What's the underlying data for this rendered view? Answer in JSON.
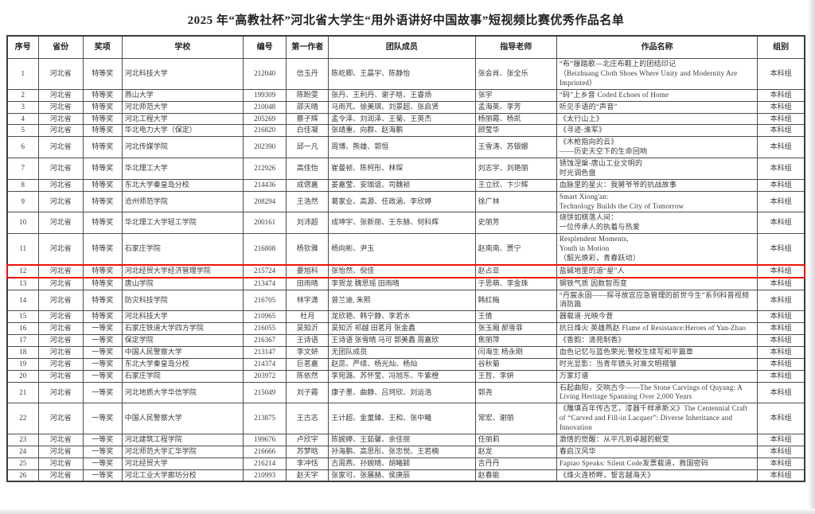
{
  "page": {
    "title": "2025 年“高教社杯”河北省大学生“用外语讲好中国故事”短视频比赛优秀作品名单"
  },
  "table": {
    "columns": [
      "序号",
      "省份",
      "奖项",
      "学校",
      "编号",
      "第一作者",
      "团队成员",
      "指导老师",
      "作品名称",
      "组别"
    ],
    "highlight_row_no": "12",
    "highlight_color": "#ec130c",
    "rows": [
      {
        "no": "1",
        "province": "河北省",
        "award": "特等奖",
        "school": "河北科技大学",
        "code": "212040",
        "author": "信玉丹",
        "team": "陈屹卿、王晨宇、陈静怡",
        "advisors": "张会肖、张全乐",
        "work": "“布”履踏歌—北庄布鞋上的团结印记\n（Beizhuang Cloth Shoes Where Unity and Modernity Are Imprinted）",
        "group": "本科组"
      },
      {
        "no": "2",
        "province": "河北省",
        "award": "特等奖",
        "school": "燕山大学",
        "code": "199309",
        "author": "陈盼雯",
        "team": "张丹、王利丹、谢子晗、王睿炀",
        "advisors": "张宇",
        "work": "“码”上乡音 Coded Echoes of Home",
        "group": "本科组"
      },
      {
        "no": "3",
        "province": "河北省",
        "award": "特等奖",
        "school": "河北师范大学",
        "code": "210048",
        "author": "邵天晴",
        "team": "马雨芃、徐美琪、刘景超、张启贤",
        "advisors": "孟海英、李芳",
        "work": "听见手语的“声音”",
        "group": "本科组"
      },
      {
        "no": "4",
        "province": "河北省",
        "award": "特等奖",
        "school": "河北工程大学",
        "code": "205269",
        "author": "蔡子辉",
        "team": "孟令泽、刘润泽、王菊、王英杰",
        "advisors": "杨丽霞、杨凯",
        "work": "《太行山上》",
        "group": "本科组"
      },
      {
        "no": "5",
        "province": "河北省",
        "award": "特等奖",
        "school": "华北电力大学（保定）",
        "code": "216820",
        "author": "白佳凝",
        "team": "张靖重、向群、赵海鹏",
        "advisors": "顾莹华",
        "work": "《寻迹·淮军》",
        "group": "本科组"
      },
      {
        "no": "6",
        "province": "河北省",
        "award": "特等奖",
        "school": "河北传媒学院",
        "code": "202390",
        "author": "邱一凡",
        "team": "周博、熊雄、郭恒",
        "advisors": "王雪涛、苏银娜",
        "work": "《木枪指向的云》\n——历史天空下的生命回响",
        "group": "本科组"
      },
      {
        "no": "7",
        "province": "河北省",
        "award": "特等奖",
        "school": "华北理工大学",
        "code": "212926",
        "author": "高佳怡",
        "team": "崔曼祯、陈柯彤、林琛",
        "advisors": "刘志宇、刘艳丽",
        "work": "锈蚀涅槃-唐山工业文明的\n时光调色盘",
        "group": "本科组"
      },
      {
        "no": "8",
        "province": "河北省",
        "award": "特等奖",
        "school": "东北大学秦皇岛分校",
        "code": "214436",
        "author": "成偲嘉",
        "team": "姜嘉莹、安珈谊、司魏祯",
        "advisors": "王立欣、卞少辉",
        "work": "血脉里的星火：我舅爷爷的抗战故事",
        "group": "本科组"
      },
      {
        "no": "9",
        "province": "河北省",
        "award": "特等奖",
        "school": "沧州师范学院",
        "code": "208294",
        "author": "王浩然",
        "team": "葛家业、高源、任政涵、李欣婷",
        "advisors": "徐广林",
        "work": "Smart Xiong'an:\nTechnology Builds the City of Tomorrow",
        "group": "本科组"
      },
      {
        "no": "10",
        "province": "河北省",
        "award": "特等奖",
        "school": "华北理工大学轻工学院",
        "code": "200161",
        "author": "刘沛超",
        "team": "成坤宇、张新丽、王东赫、何科辉",
        "advisors": "史丽芳",
        "work": "烧饼如棋落人间：\n一位传承人的执着与热爱",
        "group": "本科组"
      },
      {
        "no": "11",
        "province": "河北省",
        "award": "特等奖",
        "school": "石家庄学院",
        "code": "216808",
        "author": "杨钦雅",
        "team": "杨向彬、尹玉",
        "advisors": "赵南南、贾宁",
        "work": "Resplendent Moments,\nYouth in Motion\n（韶光焕彩，青春跃动）",
        "group": "本科组"
      },
      {
        "no": "12",
        "province": "河北省",
        "award": "特等奖",
        "school": "河北经贸大学经济管理学院",
        "code": "215724",
        "author": "要旭科",
        "team": "张怡然、倪佳",
        "advisors": "赵占亚",
        "work": "盐碱地里的追“星”人",
        "group": "本科组"
      },
      {
        "no": "13",
        "province": "河北省",
        "award": "特等奖",
        "school": "唐山学院",
        "code": "213474",
        "author": "田雨晴",
        "team": "李贺龙 魏思瑶 田雨晴",
        "advisors": "于思萌、李金珠",
        "work": "钢铁气质 因数智而变",
        "group": "本科组"
      },
      {
        "no": "14",
        "province": "河北省",
        "award": "特等奖",
        "school": "防灾科技学院",
        "code": "216705",
        "author": "林宇潇",
        "team": "曾兰迪, 朱熙",
        "advisors": "韩红梅",
        "work": "“丹宸永固——探寻故宫应急管理的前世今生”系列科普视频消防篇",
        "group": "本科组"
      },
      {
        "no": "15",
        "province": "河北省",
        "award": "特等奖",
        "school": "河北科技大学",
        "code": "210965",
        "author": "杜月",
        "team": "龙欣艳、韩宁静、李若水",
        "advisors": "王倩",
        "work": "器载道·光映今昔",
        "group": "本科组"
      },
      {
        "no": "16",
        "province": "河北省",
        "award": "一等奖",
        "school": "石家庄铁道大学四方学院",
        "code": "216055",
        "author": "吴知沂",
        "team": "吴知沂 祁越 田茗月 张金鑫",
        "advisors": "张玉厢 郝雪菲",
        "work": "抗日烽火 英雄燕赵 Flame of Resistance:Heroes of Yan-Zhao",
        "group": "本科组"
      },
      {
        "no": "17",
        "province": "河北省",
        "award": "一等奖",
        "school": "保定学院",
        "code": "216367",
        "author": "王诗语",
        "team": "王诗语 张雪晴 马可 郭美鑫 周嘉欣",
        "advisors": "焦丽萍",
        "work": "《香韵：清苑制香》",
        "group": "本科组"
      },
      {
        "no": "18",
        "province": "河北省",
        "award": "一等奖",
        "school": "中国人民警察大学",
        "code": "213147",
        "author": "李文妍",
        "team": "无团队成员",
        "advisors": "闫海生 杨永刚",
        "work": "血色记忆与蓝色荣光:警校生续写和平篇章",
        "group": "本科组"
      },
      {
        "no": "19",
        "province": "河北省",
        "award": "一等奖",
        "school": "东北大学秦皇岛分校",
        "code": "214374",
        "author": "巨茗嘉",
        "team": "赵蕊、严续、杨光灿、杨灿",
        "advisors": "谷秋菊",
        "work": "时光显影：当青年镜头对准文明褶皱",
        "group": "本科组"
      },
      {
        "no": "20",
        "province": "河北省",
        "award": "一等奖",
        "school": "石家庄学院",
        "code": "203972",
        "author": "陈依然",
        "team": "李宛潞、苏怀莹、冯旭东、牛紫橙",
        "advisors": "王哲、李妍",
        "work": "万家灯谱",
        "group": "本科组"
      },
      {
        "no": "21",
        "province": "河北省",
        "award": "一等奖",
        "school": "河北地质大学华信学院",
        "code": "215049",
        "author": "刘子霞",
        "team": "康子墨、曲静、吕珂欣、刘运浩",
        "advisors": "郭尧",
        "work": "石起曲阳，交响古今——The Stone Carvings of Quyang: A Living Heritage Spanning Over 2,000 Years",
        "group": "本科组"
      },
      {
        "no": "22",
        "province": "河北省",
        "award": "一等奖",
        "school": "中国人民警察大学",
        "code": "213875",
        "author": "王古志",
        "team": "王计超、金童臻、王和、张中曦",
        "advisors": "常宏、谢丽",
        "work": "《雕填百年传古艺，漆器千样承新义》The Centennial Craft of “Carved and Fill-in Lacquer”: Diverse Inheritance and Innovation",
        "group": "本科组"
      },
      {
        "no": "23",
        "province": "河北省",
        "award": "一等奖",
        "school": "河北建筑工程学院",
        "code": "199676",
        "author": "卢欣宇",
        "team": "陈婉婷、王茹馨、余佳丽",
        "advisors": "任丽莉",
        "work": "激情的觉醒：从平凡到卓越的蜕变",
        "group": "本科组"
      },
      {
        "no": "24",
        "province": "河北省",
        "award": "一等奖",
        "school": "河北师范大学汇华学院",
        "code": "216666",
        "author": "苏梦晗",
        "team": "孙海鹏、高思彤、张忠悦、王若楠",
        "advisors": "赵龙",
        "work": "春启汉风华",
        "group": "本科组"
      },
      {
        "no": "25",
        "province": "河北省",
        "award": "一等奖",
        "school": "河北经贸大学",
        "code": "216214",
        "author": "李冲恬",
        "team": "古周燕、孙婉晴、胡曦颖",
        "advisors": "吉丹丹",
        "work": "Fapiao Speaks: Silent Code发票载道，救国密码",
        "group": "本科组"
      },
      {
        "no": "26",
        "province": "河北省",
        "award": "一等奖",
        "school": "河北工业大学廊坊分校",
        "code": "210993",
        "author": "赵天宇",
        "team": "张家可、张展赫、侯庚辰",
        "advisors": "赵春能",
        "work": "《烽火连桥畔，誓言越海天》",
        "group": "本科组"
      }
    ]
  }
}
